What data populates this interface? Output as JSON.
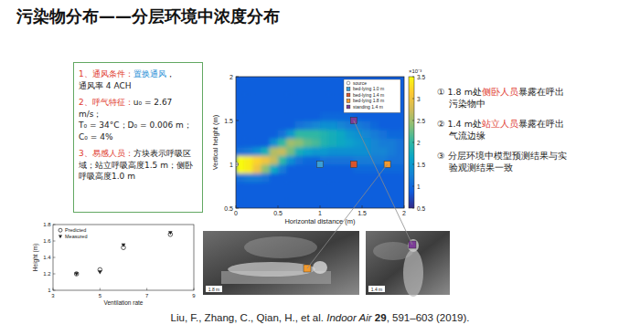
{
  "slide": {
    "title": "污染物分布——分层环境中浓度分布",
    "conditions": [
      [
        [
          {
            "text": "1、通风条件：",
            "color": "#e0392e"
          },
          {
            "text": "置换通风",
            "color": "#1f8fd6"
          },
          {
            "text": "，"
          }
        ],
        [
          {
            "text": "通风率 4 ACH"
          }
        ]
      ],
      [
        [
          {
            "text": "2、呼气特征：",
            "color": "#e0392e"
          },
          {
            "text": "u₀ = 2.67 m/s；"
          }
        ],
        [
          {
            "text": "T₀ = 34°C；D₀ = 0.006 m；C₀ = 4%"
          }
        ]
      ],
      [
        [
          {
            "text": "3、易感人员：",
            "color": "#e0392e"
          },
          {
            "text": "方块表示呼吸区域；站立呼吸高度1.5 m；侧卧呼吸高度1.0 m"
          }
        ]
      ]
    ],
    "findings": [
      [
        {
          "text": "① 1.8 m处"
        },
        {
          "text": "侧卧人员",
          "color": "#e0392e"
        },
        {
          "text": "暴露在呼出污染物中"
        }
      ],
      [
        {
          "text": "② 1.4 m处"
        },
        {
          "text": "站立人员",
          "color": "#e0392e"
        },
        {
          "text": "暴露在呼出气流边缘"
        }
      ],
      [
        {
          "text": "③ 分层环境中模型预测结果与实验观测结果一致"
        }
      ]
    ],
    "photos": [
      {
        "label": "1.8 m"
      },
      {
        "label": "1.4 m"
      }
    ],
    "citation": [
      {
        "text": "Liu, F., Zhang, C., Qian, H., et al. "
      },
      {
        "text": "Indoor Air",
        "style": "italic"
      },
      {
        "text": " 29",
        "style": "bold"
      },
      {
        "text": ", 591–603 (2019)."
      }
    ]
  },
  "chart_data": [
    {
      "type": "heatmap",
      "xlabel": "Horizontal distance (m)",
      "ylabel": "Vertical height (m)",
      "xlim": [
        0,
        2
      ],
      "ylim": [
        0.5,
        2
      ],
      "xticks": [
        0,
        0.5,
        1,
        1.5,
        2
      ],
      "yticks": [
        0.5,
        1,
        1.5,
        2
      ],
      "x": [
        0.05,
        0.15,
        0.25,
        0.35,
        0.45,
        0.55,
        0.65,
        0.75,
        0.85,
        0.95,
        1.05,
        1.15,
        1.25,
        1.35,
        1.45,
        1.55,
        1.65,
        1.75,
        1.85,
        1.95
      ],
      "y": [
        0.55,
        0.65,
        0.75,
        0.85,
        0.95,
        1.05,
        1.15,
        1.25,
        1.35,
        1.45,
        1.55,
        1.65,
        1.75,
        1.85,
        1.95
      ],
      "z": [
        [
          0.9,
          0.9,
          0.9,
          0.9,
          0.9,
          0.9,
          0.9,
          0.9,
          0.9,
          0.9,
          0.9,
          0.9,
          0.9,
          0.9,
          0.9,
          0.9,
          0.9,
          0.9,
          0.9,
          0.9
        ],
        [
          0.9,
          0.9,
          0.9,
          0.9,
          0.9,
          0.9,
          0.9,
          0.9,
          0.9,
          0.9,
          0.9,
          0.9,
          0.9,
          0.9,
          0.9,
          0.9,
          0.9,
          0.9,
          0.9,
          0.9
        ],
        [
          0.9,
          0.9,
          0.9,
          0.9,
          0.9,
          0.9,
          0.9,
          0.9,
          0.9,
          0.9,
          0.9,
          0.9,
          0.9,
          0.9,
          0.9,
          0.9,
          0.9,
          0.9,
          0.9,
          0.9
        ],
        [
          1.1,
          1.2,
          1.2,
          1.1,
          0.9,
          0.9,
          0.9,
          0.9,
          0.9,
          0.9,
          0.9,
          0.9,
          0.9,
          0.9,
          0.9,
          0.9,
          0.9,
          0.9,
          0.9,
          0.9
        ],
        [
          3.5,
          3.4,
          3.0,
          2.4,
          1.7,
          1.2,
          0.9,
          0.9,
          0.9,
          0.9,
          0.9,
          0.9,
          0.9,
          0.9,
          1.0,
          1.0,
          1.0,
          1.0,
          1.0,
          1.0
        ],
        [
          3.5,
          3.4,
          3.2,
          3.0,
          2.7,
          2.0,
          1.4,
          1.1,
          1.0,
          1.0,
          1.1,
          1.1,
          1.1,
          1.1,
          1.2,
          1.2,
          1.2,
          1.2,
          1.1,
          1.1
        ],
        [
          1.1,
          1.2,
          1.4,
          1.8,
          2.6,
          2.7,
          2.3,
          1.8,
          1.6,
          1.5,
          1.5,
          1.4,
          1.4,
          1.4,
          1.4,
          1.4,
          1.3,
          1.3,
          1.2,
          1.1
        ],
        [
          0.9,
          0.9,
          0.9,
          0.9,
          1.4,
          2.0,
          2.5,
          2.4,
          2.2,
          2.1,
          1.9,
          1.8,
          1.7,
          1.6,
          1.5,
          1.4,
          1.3,
          1.2,
          1.2,
          1.1
        ],
        [
          0.9,
          0.9,
          0.9,
          0.9,
          0.9,
          1.1,
          1.5,
          2.0,
          2.0,
          2.0,
          1.9,
          1.8,
          1.7,
          1.5,
          1.4,
          1.3,
          1.2,
          1.1,
          1.0,
          1.0
        ],
        [
          0.9,
          0.9,
          0.9,
          0.9,
          0.9,
          0.9,
          0.9,
          1.1,
          1.2,
          1.3,
          1.4,
          1.4,
          1.3,
          1.2,
          1.2,
          1.1,
          1.0,
          0.9,
          0.9,
          0.9
        ],
        [
          0.9,
          0.9,
          0.9,
          0.9,
          0.9,
          0.9,
          0.9,
          0.9,
          0.9,
          0.9,
          1.0,
          1.0,
          1.0,
          1.0,
          0.9,
          0.9,
          0.9,
          0.9,
          0.9,
          0.9
        ],
        [
          0.9,
          0.9,
          0.9,
          0.9,
          0.9,
          0.9,
          0.9,
          0.9,
          0.9,
          0.9,
          0.9,
          0.9,
          0.9,
          0.9,
          0.9,
          0.9,
          0.9,
          0.9,
          0.9,
          0.9
        ],
        [
          0.9,
          0.9,
          0.9,
          0.9,
          0.9,
          0.9,
          0.9,
          0.9,
          0.9,
          0.9,
          0.9,
          0.9,
          0.9,
          0.9,
          0.9,
          0.9,
          0.9,
          0.9,
          0.9,
          0.9
        ],
        [
          0.9,
          0.9,
          0.9,
          0.9,
          0.9,
          0.9,
          0.9,
          0.9,
          0.9,
          0.9,
          0.9,
          0.9,
          0.9,
          0.9,
          0.9,
          0.9,
          0.9,
          0.9,
          0.9,
          0.9
        ],
        [
          0.9,
          0.9,
          0.9,
          0.9,
          0.9,
          0.9,
          0.9,
          0.9,
          0.9,
          0.9,
          0.9,
          0.9,
          0.9,
          0.9,
          0.9,
          0.9,
          0.9,
          0.9,
          0.9,
          0.9
        ]
      ],
      "colorbar_lim": [
        0.5,
        3.5
      ],
      "colorbar_ticks": [
        0.5,
        1,
        1.5,
        2,
        2.5,
        3,
        3.5
      ],
      "colorbar_label": "×10⁻³",
      "legend": "upper right",
      "series": [
        {
          "name": "source",
          "type": "scatter",
          "marker": "circle",
          "color": "#ffffff",
          "x": [
            0
          ],
          "values": [
            1.0
          ]
        },
        {
          "name": "bed-lying 1.0 m",
          "type": "scatter",
          "marker": "square",
          "color": "#3a9fd8",
          "x": [
            1.0
          ],
          "values": [
            1.0
          ]
        },
        {
          "name": "bed-lying 1.4 m",
          "type": "scatter",
          "marker": "square",
          "color": "#d9542c",
          "x": [
            1.4
          ],
          "values": [
            1.0
          ]
        },
        {
          "name": "bed-lying 1.8 m",
          "type": "scatter",
          "marker": "square",
          "color": "#f29a2e",
          "x": [
            1.8
          ],
          "values": [
            1.0
          ]
        },
        {
          "name": "standing 1.4 m",
          "type": "scatter",
          "marker": "square",
          "color": "#7d3c98",
          "x": [
            1.4
          ],
          "values": [
            1.5
          ]
        }
      ]
    },
    {
      "type": "scatter",
      "xlabel": "Ventilation rate",
      "ylabel": "Height (m)",
      "xlim": [
        3,
        9
      ],
      "ylim": [
        1,
        1.8
      ],
      "xticks": [
        3,
        5,
        7,
        9
      ],
      "yticks": [
        1,
        1.2,
        1.4,
        1.6,
        1.8
      ],
      "legend": "upper left",
      "series": [
        {
          "name": "Predicted",
          "marker": "open-circle",
          "color": "#333333",
          "x": [
            4,
            5,
            6,
            8
          ],
          "values": [
            1.2,
            1.25,
            1.52,
            1.68
          ]
        },
        {
          "name": "Measured",
          "marker": "triangle-down",
          "color": "#222222",
          "x": [
            4,
            5,
            6,
            8
          ],
          "values": [
            1.2,
            1.22,
            1.55,
            1.7
          ]
        }
      ]
    }
  ]
}
